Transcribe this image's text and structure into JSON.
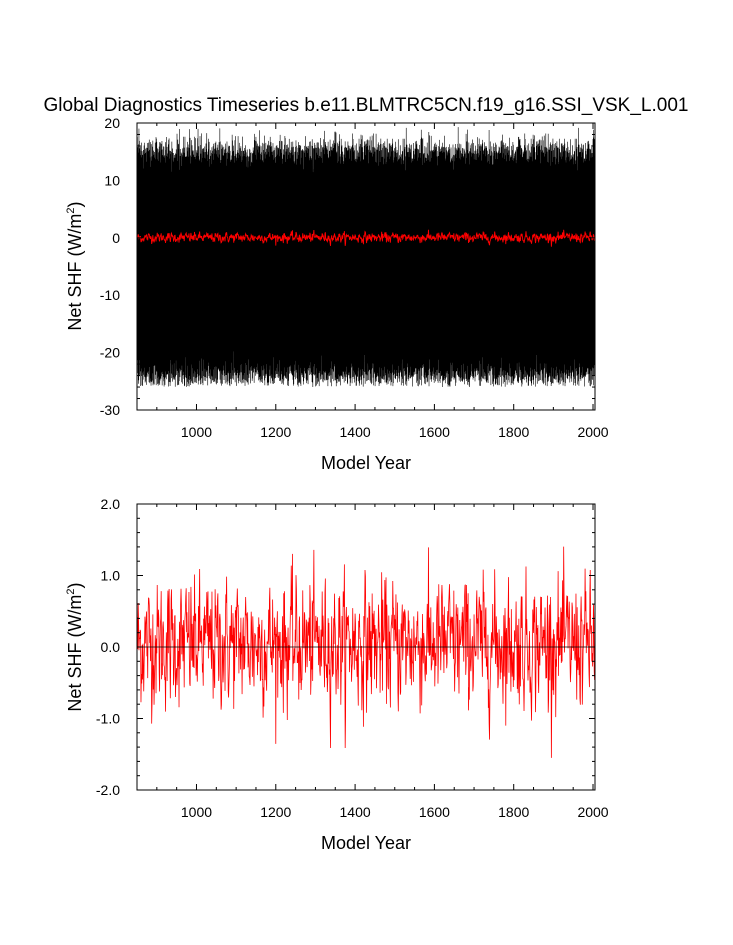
{
  "title": "Global Diagnostics Timeseries b.e11.BLMTRC5CN.f19_g16.SSI_VSK_L.001",
  "colors": {
    "monthly": "#000000",
    "annual": "#ff0000",
    "frame": "#000000"
  },
  "chart_data": [
    {
      "type": "line",
      "xlabel": "Model Year",
      "ylabel_main": "Net SHF (W/m",
      "ylabel_sup": "2",
      "ylabel_end": ")",
      "xlim": [
        850,
        2005
      ],
      "ylim": [
        -30,
        20
      ],
      "xticks": [
        1000,
        1200,
        1400,
        1600,
        1800,
        2000
      ],
      "xtick_labels": [
        "1000",
        "1200",
        "1400",
        "1600",
        "1800",
        "2000"
      ],
      "yticks": [
        -30,
        -20,
        -10,
        0,
        10,
        20
      ],
      "ytick_labels": [
        "-30",
        "-20",
        "-10",
        "0",
        "10",
        "20"
      ],
      "series": [
        {
          "kind": "monthly",
          "start": 850,
          "end": 2005,
          "mean": -4.5,
          "amplitude": 19.5,
          "min_observed": -26,
          "max_observed": 19.5
        },
        {
          "kind": "annual",
          "start": 850,
          "end": 2005,
          "mean": 0.0,
          "range": [
            -1.5,
            1.5
          ]
        }
      ]
    },
    {
      "type": "line",
      "xlabel": "Model Year",
      "ylabel_main": "Net SHF (W/m",
      "ylabel_sup": "2",
      "ylabel_end": ")",
      "xlim": [
        850,
        2005
      ],
      "ylim": [
        -2.0,
        2.0
      ],
      "xticks": [
        1000,
        1200,
        1400,
        1600,
        1800,
        2000
      ],
      "xtick_labels": [
        "1000",
        "1200",
        "1400",
        "1600",
        "1800",
        "2000"
      ],
      "yticks": [
        -2.0,
        -1.0,
        0.0,
        1.0,
        2.0
      ],
      "ytick_labels": [
        "-2.0",
        "-1.0",
        "0.0",
        "1.0",
        "2.0"
      ],
      "zero_line": 0.0,
      "series": [
        {
          "kind": "annual",
          "start": 850,
          "end": 2005,
          "mean": 0.05,
          "max_observed": 1.5,
          "min_observed": -1.55
        }
      ]
    }
  ]
}
